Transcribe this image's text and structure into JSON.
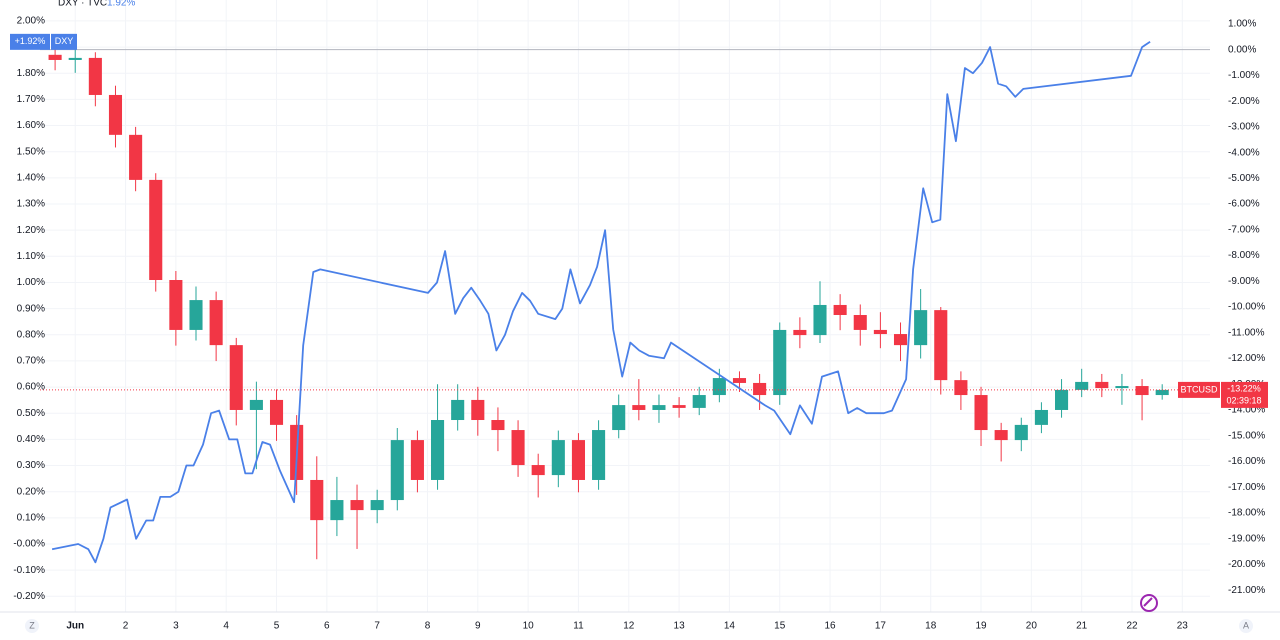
{
  "chart_data": {
    "type": "candlestick",
    "legend": {
      "symbol": "DXY · TVC",
      "value": "1.92%"
    },
    "corner_labels": [
      "Z",
      "A"
    ],
    "xlim": [
      0.3,
      23.55
    ],
    "xticks": [
      {
        "value": 1,
        "label": "Jun"
      },
      2,
      3,
      4,
      5,
      6,
      7,
      8,
      9,
      10,
      11,
      12,
      13,
      14,
      15,
      16,
      17,
      18,
      19,
      20,
      21,
      22,
      23
    ],
    "ylim": [
      -0.26,
      2.08
    ],
    "yticks": [
      {
        "value": 2.0,
        "label": "2.00%"
      },
      {
        "value": 1.9,
        "label": "1.90%"
      },
      {
        "value": 1.8,
        "label": "1.80%"
      },
      {
        "value": 1.7,
        "label": "1.70%"
      },
      {
        "value": 1.6,
        "label": "1.60%"
      },
      {
        "value": 1.5,
        "label": "1.50%"
      },
      {
        "value": 1.4,
        "label": "1.40%"
      },
      {
        "value": 1.3,
        "label": "1.30%"
      },
      {
        "value": 1.2,
        "label": "1.20%"
      },
      {
        "value": 1.1,
        "label": "1.10%"
      },
      {
        "value": 1.0,
        "label": "1.00%"
      },
      {
        "value": 0.9,
        "label": "0.90%"
      },
      {
        "value": 0.8,
        "label": "0.80%"
      },
      {
        "value": 0.7,
        "label": "0.70%"
      },
      {
        "value": 0.6,
        "label": "0.60%"
      },
      {
        "value": 0.5,
        "label": "0.50%"
      },
      {
        "value": 0.4,
        "label": "0.40%"
      },
      {
        "value": 0.3,
        "label": "0.30%"
      },
      {
        "value": 0.2,
        "label": "0.20%"
      },
      {
        "value": 0.1,
        "label": "0.10%"
      },
      {
        "value": 0,
        "label": "-0.00%"
      },
      {
        "value": -0.1,
        "label": "-0.10%"
      },
      {
        "value": -0.2,
        "label": "-0.20%"
      }
    ],
    "y2lim": [
      -21.85,
      1.93
    ],
    "y2ticks": [
      {
        "value": 1,
        "label": "1.00%"
      },
      {
        "value": 0,
        "label": "0.00%"
      },
      {
        "value": -1,
        "label": "-1.00%"
      },
      {
        "value": -2,
        "label": "-2.00%"
      },
      {
        "value": -3,
        "label": "-3.00%"
      },
      {
        "value": -4,
        "label": "-4.00%"
      },
      {
        "value": -5,
        "label": "-5.00%"
      },
      {
        "value": -6,
        "label": "-6.00%"
      },
      {
        "value": -7,
        "label": "-7.00%"
      },
      {
        "value": -8,
        "label": "-8.00%"
      },
      {
        "value": -9,
        "label": "-9.00%"
      },
      {
        "value": -10,
        "label": "-10.00%"
      },
      {
        "value": -11,
        "label": "-11.00%"
      },
      {
        "value": -12,
        "label": "-12.00%"
      },
      {
        "value": -13,
        "label": "-13.00%"
      },
      {
        "value": -14,
        "label": "-14.00%"
      },
      {
        "value": -15,
        "label": "-15.00%"
      },
      {
        "value": -16,
        "label": "-16.00%"
      },
      {
        "value": -17,
        "label": "-17.00%"
      },
      {
        "value": -18,
        "label": "-18.00%"
      },
      {
        "value": -19,
        "label": "-19.00%"
      },
      {
        "value": -20,
        "label": "-20.00%"
      },
      {
        "value": -21,
        "label": "-21.00%"
      }
    ],
    "grid": true,
    "series": [
      {
        "name": "DXY",
        "type": "line",
        "axis": "y",
        "color": "#4a80e8",
        "last_label": "+1.92%",
        "x": [
          0.54,
          1.06,
          1.26,
          1.4,
          1.56,
          1.7,
          2.03,
          2.21,
          2.41,
          2.55,
          2.69,
          2.89,
          3.05,
          3.21,
          3.35,
          3.54,
          3.7,
          3.86,
          4.06,
          4.22,
          4.38,
          4.52,
          4.72,
          4.87,
          5.07,
          5.35,
          5.53,
          5.73,
          5.87,
          8.01,
          8.19,
          8.35,
          8.55,
          8.71,
          8.87,
          9.05,
          9.21,
          9.37,
          9.54,
          9.7,
          9.88,
          10.04,
          10.2,
          10.54,
          10.68,
          10.84,
          11.03,
          11.23,
          11.37,
          11.53,
          11.69,
          11.87,
          12.03,
          12.21,
          12.4,
          12.7,
          12.84,
          14.71,
          14.89,
          15.21,
          15.4,
          15.64,
          15.84,
          16.16,
          16.36,
          16.54,
          16.72,
          17.07,
          17.23,
          17.51,
          17.65,
          17.85,
          18.03,
          18.19,
          18.33,
          18.5,
          18.68,
          18.84,
          19.02,
          19.18,
          19.34,
          19.5,
          19.68,
          19.84,
          21.98,
          22.2,
          22.36
        ],
        "values": [
          -0.02,
          0.0,
          -0.02,
          -0.07,
          0.02,
          0.14,
          0.17,
          0.02,
          0.09,
          0.09,
          0.18,
          0.18,
          0.2,
          0.3,
          0.3,
          0.38,
          0.5,
          0.51,
          0.4,
          0.4,
          0.27,
          0.27,
          0.39,
          0.38,
          0.28,
          0.16,
          0.76,
          1.04,
          1.05,
          0.96,
          1.0,
          1.12,
          0.88,
          0.94,
          0.98,
          0.93,
          0.88,
          0.74,
          0.8,
          0.89,
          0.96,
          0.93,
          0.88,
          0.86,
          0.9,
          1.05,
          0.92,
          0.99,
          1.06,
          1.2,
          0.82,
          0.64,
          0.77,
          0.74,
          0.72,
          0.71,
          0.77,
          0.53,
          0.51,
          0.42,
          0.53,
          0.46,
          0.64,
          0.66,
          0.5,
          0.52,
          0.5,
          0.5,
          0.51,
          0.63,
          1.05,
          1.36,
          1.23,
          1.24,
          1.72,
          1.54,
          1.82,
          1.8,
          1.84,
          1.9,
          1.76,
          1.75,
          1.71,
          1.74,
          1.79,
          1.9,
          1.92
        ]
      },
      {
        "name": "BTCUSD",
        "type": "candlestick",
        "axis": "y2",
        "up_color": "#26a69a",
        "down_color": "#f23645",
        "last_label": "-13.22%",
        "countdown": "02:39:18",
        "x": [
          0.6,
          1.0,
          1.4,
          1.8,
          2.2,
          2.6,
          3.0,
          3.4,
          3.8,
          4.2,
          4.6,
          5.0,
          5.4,
          5.8,
          6.2,
          6.6,
          7.0,
          7.4,
          7.8,
          8.2,
          8.6,
          9.0,
          9.4,
          9.8,
          10.2,
          10.6,
          11.0,
          11.4,
          11.8,
          12.2,
          12.6,
          13.0,
          13.4,
          13.8,
          14.2,
          14.6,
          15.0,
          15.4,
          15.8,
          16.2,
          16.6,
          17.0,
          17.4,
          17.8,
          18.2,
          18.6,
          19.0,
          19.4,
          19.8,
          20.2,
          20.6,
          21.0,
          21.4,
          21.8,
          22.2,
          22.6
        ],
        "open": [
          -0.2,
          -0.4,
          -0.32,
          -1.76,
          -3.31,
          -5.06,
          -8.95,
          -10.89,
          -9.73,
          -11.48,
          -14.0,
          -13.61,
          -14.58,
          -16.72,
          -18.28,
          -17.5,
          -17.89,
          -17.5,
          -15.17,
          -16.72,
          -14.39,
          -13.61,
          -14.39,
          -14.78,
          -16.14,
          -16.53,
          -15.17,
          -16.72,
          -14.78,
          -13.81,
          -14.0,
          -13.81,
          -13.92,
          -13.42,
          -12.76,
          -12.95,
          -13.42,
          -10.89,
          -11.09,
          -9.92,
          -10.31,
          -10.89,
          -11.05,
          -11.48,
          -10.12,
          -12.84,
          -13.42,
          -14.78,
          -15.17,
          -14.58,
          -14.0,
          -13.22,
          -12.91,
          -13.15,
          -13.07,
          -13.42
        ],
        "high": [
          0.2,
          0.05,
          -0.1,
          -1.4,
          -3.0,
          -4.8,
          -8.6,
          -9.2,
          -9.4,
          -11.2,
          -12.9,
          -13.2,
          -14.2,
          -15.8,
          -16.6,
          -16.9,
          -17.1,
          -14.7,
          -14.8,
          -13.0,
          -13.0,
          -13.1,
          -13.9,
          -14.4,
          -15.7,
          -14.8,
          -14.9,
          -14.4,
          -13.4,
          -12.8,
          -13.4,
          -13.5,
          -13.1,
          -12.4,
          -12.5,
          -12.6,
          -10.6,
          -10.4,
          -9.0,
          -9.5,
          -9.9,
          -10.2,
          -10.6,
          -9.3,
          -10.0,
          -12.5,
          -13.1,
          -14.5,
          -14.3,
          -13.7,
          -12.8,
          -12.4,
          -12.6,
          -12.6,
          -12.8,
          -13.0
        ],
        "low": [
          -0.8,
          -0.9,
          -2.2,
          -3.8,
          -5.5,
          -9.4,
          -11.5,
          -11.3,
          -12.1,
          -14.6,
          -16.3,
          -15.2,
          -17.3,
          -19.8,
          -18.9,
          -19.4,
          -18.4,
          -17.9,
          -17.2,
          -17.1,
          -14.8,
          -15.0,
          -15.6,
          -16.6,
          -17.4,
          -17.0,
          -17.2,
          -17.1,
          -15.1,
          -14.4,
          -14.5,
          -14.3,
          -14.2,
          -13.7,
          -13.3,
          -14.0,
          -13.8,
          -11.6,
          -11.4,
          -10.9,
          -11.5,
          -11.6,
          -12.1,
          -12.0,
          -13.4,
          -14.0,
          -15.4,
          -16.0,
          -15.6,
          -14.9,
          -14.3,
          -13.5,
          -13.5,
          -13.8,
          -14.4,
          -13.6
        ],
        "close": [
          -0.4,
          -0.32,
          -1.76,
          -3.31,
          -5.06,
          -8.95,
          -10.89,
          -9.73,
          -11.48,
          -14.0,
          -13.61,
          -14.58,
          -16.72,
          -18.28,
          -17.5,
          -17.89,
          -17.5,
          -15.17,
          -16.72,
          -14.39,
          -13.61,
          -14.39,
          -14.78,
          -16.14,
          -16.53,
          -15.17,
          -16.72,
          -14.78,
          -13.81,
          -14.0,
          -13.81,
          -13.92,
          -13.42,
          -12.76,
          -12.95,
          -13.42,
          -10.89,
          -11.09,
          -9.92,
          -10.31,
          -10.89,
          -11.05,
          -11.48,
          -10.12,
          -12.84,
          -13.42,
          -14.78,
          -15.17,
          -14.58,
          -14.0,
          -13.22,
          -12.91,
          -13.15,
          -13.07,
          -13.42,
          -13.22
        ]
      }
    ]
  }
}
